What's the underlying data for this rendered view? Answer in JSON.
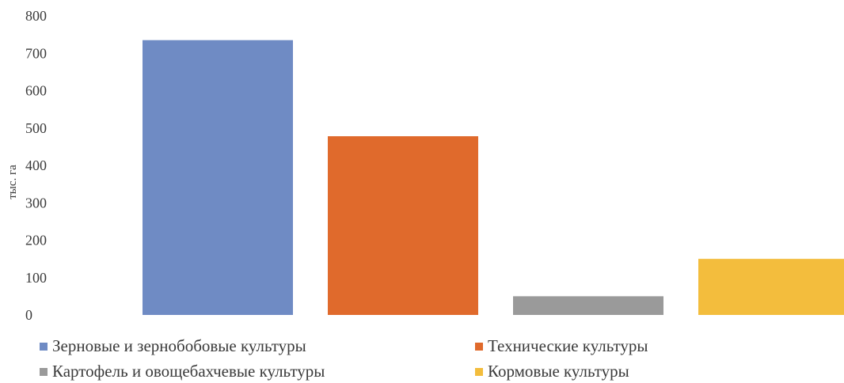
{
  "chart_data": {
    "type": "bar",
    "categories": [
      "Зерновые и зернобобовые культуры",
      "Технические культуры",
      "Картофель и овощебахчевые культуры",
      "Кормовые культуры"
    ],
    "values": [
      735,
      478,
      50,
      150
    ],
    "colors": [
      "#6f8bc4",
      "#e06a2c",
      "#9a9a9a",
      "#f3bd3d"
    ],
    "ylabel": "тыс. га",
    "ylim": [
      0,
      800
    ],
    "yticks": [
      "0",
      "100",
      "200",
      "300",
      "400",
      "500",
      "600",
      "700",
      "800"
    ],
    "grid": false,
    "legend_position": "bottom",
    "legend": [
      {
        "label": "Зерновые и зернобобовые культуры",
        "color": "#6f8bc4"
      },
      {
        "label": "Технические культуры",
        "color": "#e06a2c"
      },
      {
        "label": "Картофель и овощебахчевые культуры",
        "color": "#9a9a9a"
      },
      {
        "label": "Кормовые культуры",
        "color": "#f3bd3d"
      }
    ]
  }
}
